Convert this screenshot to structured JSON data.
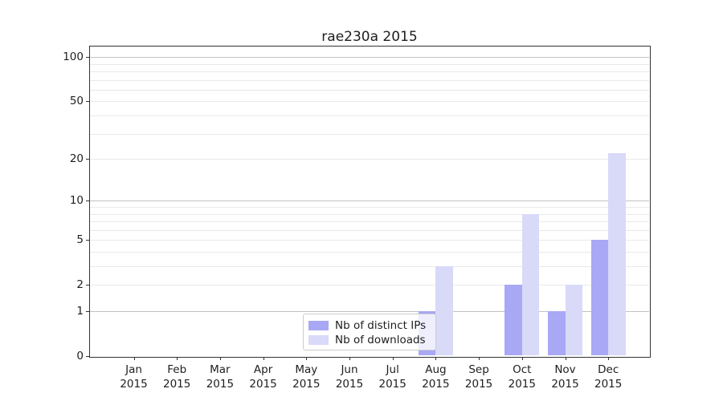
{
  "chart_data": {
    "type": "bar",
    "title": "rae230a 2015",
    "xlabel": "",
    "ylabel": "",
    "categories": [
      "Jan",
      "Feb",
      "Mar",
      "Apr",
      "May",
      "Jun",
      "Jul",
      "Aug",
      "Sep",
      "Oct",
      "Nov",
      "Dec"
    ],
    "x_year_line": "2015",
    "series": [
      {
        "name": "Nb of distinct IPs",
        "color": "#a8a8f4",
        "values": [
          0,
          0,
          0,
          0,
          0,
          0,
          0,
          1,
          0,
          2,
          1,
          5
        ]
      },
      {
        "name": "Nb of downloads",
        "color": "#d9d9f8",
        "values": [
          0,
          0,
          0,
          0,
          0,
          0,
          0,
          3,
          0,
          8,
          2,
          22
        ]
      }
    ],
    "yscale": "log1p",
    "ylim": [
      0,
      115
    ],
    "ytick_values": [
      0,
      1,
      2,
      5,
      10,
      20,
      50,
      100
    ],
    "ytick_labels": [
      "0",
      "1",
      "2",
      "5",
      "10",
      "20",
      "50",
      "100"
    ],
    "grid_major_values": [
      1,
      10,
      100
    ],
    "grid_minor_values": [
      2,
      3,
      4,
      5,
      6,
      7,
      8,
      9,
      20,
      30,
      40,
      50,
      60,
      70,
      80,
      90
    ],
    "grid": "horizontal",
    "legend_position": "lower center"
  }
}
